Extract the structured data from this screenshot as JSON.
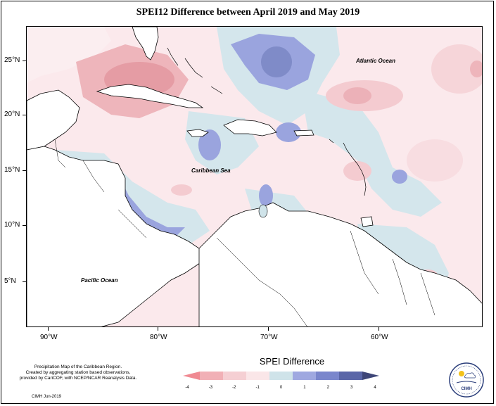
{
  "title": "SPEI12 Difference between April 2019 and May 2019",
  "map": {
    "lat_labels": [
      "25°N",
      "20°N",
      "15°N",
      "10°N",
      "5°N"
    ],
    "lon_labels": [
      "90°W",
      "80°W",
      "70°W",
      "60°W"
    ],
    "regions": {
      "atlantic": "Atlantic Ocean",
      "caribbean": "Caribbean Sea",
      "pacific": "Pacific Ocean"
    }
  },
  "legend": {
    "title": "SPEI Difference",
    "ticks": [
      "-4",
      "-3",
      "-2",
      "-1",
      "0",
      "1",
      "2",
      "3",
      "4"
    ],
    "colors": [
      "#f08a92",
      "#f1b0b6",
      "#f5cfd3",
      "#fae6e8",
      "#cfe3e9",
      "#9fa8e0",
      "#7a86cc",
      "#5a66a8",
      "#3e4678"
    ]
  },
  "credit": {
    "line1": "Precipitation Map of the Caribbean Region.",
    "line2": "Created by aggregating station based observations,",
    "line3": "provided by CariCOF, with NCEP/NCAR Reanalysis Data."
  },
  "cimh_date": "CIMH Jun-2019",
  "logo": {
    "text": "CIMH",
    "icon": "cimh-logo-icon"
  },
  "colors": {
    "frame": "#000000",
    "land": "#ffffff",
    "coast": "#000000"
  }
}
